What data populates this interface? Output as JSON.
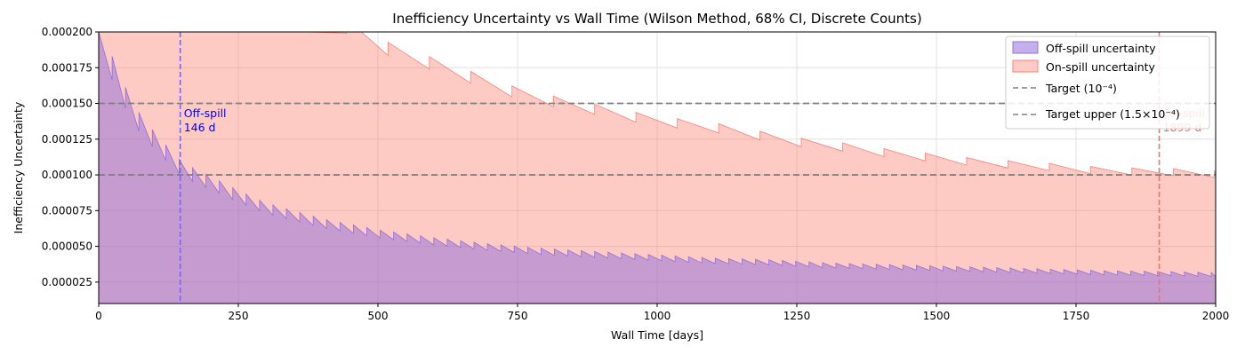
{
  "chart_data": {
    "type": "area",
    "title": "Inefficiency Uncertainty vs Wall Time (Wilson Method, 68% CI, Discrete Counts)",
    "xlabel": "Wall Time [days]",
    "ylabel": "Inefficiency Uncertainty",
    "xlim": [
      0,
      2000
    ],
    "ylim": [
      1e-05,
      0.0002
    ],
    "xticks": [
      "0",
      "250",
      "500",
      "750",
      "1000",
      "1250",
      "1500",
      "1750",
      "2000"
    ],
    "yticks": [
      "0.000025",
      "0.000050",
      "0.000075",
      "0.000100",
      "0.000125",
      "0.000150",
      "0.000175",
      "0.000200"
    ],
    "grid": true,
    "legend_position": "top-right",
    "series": [
      {
        "name": "Off-spill uncertainty",
        "color": "#9370DB",
        "x": [
          0,
          10,
          25,
          50,
          73,
          100,
          125,
          146,
          175,
          200,
          250,
          300,
          400,
          500,
          600,
          700,
          800,
          900,
          1000,
          1100,
          1200,
          1300,
          1400,
          1500,
          1600,
          1700,
          1800,
          1900,
          2000
        ],
        "values": [
          0.0002,
          0.000185,
          0.000165,
          0.000145,
          0.00013,
          0.000118,
          0.000108,
          0.0001,
          9.4e-05,
          9e-05,
          8.1e-05,
          7.3e-05,
          6.3e-05,
          5.6e-05,
          5.1e-05,
          4.7e-05,
          4.4e-05,
          4.2e-05,
          4e-05,
          3.8e-05,
          3.7e-05,
          3.5e-05,
          3.4e-05,
          3.3e-05,
          3.2e-05,
          3.1e-05,
          3e-05,
          2.95e-05,
          2.88e-05
        ]
      },
      {
        "name": "On-spill uncertainty",
        "color": "#FA8072",
        "x": [
          0,
          100,
          200,
          300,
          400,
          440,
          500,
          515,
          585,
          660,
          735,
          810,
          880,
          960,
          1030,
          1100,
          1175,
          1250,
          1325,
          1400,
          1475,
          1550,
          1620,
          1700,
          1770,
          1840,
          1900,
          2000
        ],
        "values": [
          0.0002,
          0.0002,
          0.0002,
          0.0002,
          0.0002,
          0.0002,
          0.000188,
          0.000184,
          0.000175,
          0.000165,
          0.000155,
          0.000148,
          0.000143,
          0.000137,
          0.000133,
          0.00013,
          0.000125,
          0.00012,
          0.000117,
          0.000113,
          0.00011,
          0.000107,
          0.000105,
          0.000103,
          0.000101,
          0.0001,
          9.98e-05,
          9.82e-05
        ]
      }
    ],
    "reference_lines": [
      {
        "name": "Target (10⁻⁴)",
        "y": 0.0001,
        "style": "dashed",
        "color": "#808080"
      },
      {
        "name": "Target upper (1.5×10⁻⁴)",
        "y": 0.00015,
        "style": "dashed",
        "color": "#808080"
      }
    ],
    "vertical_markers": [
      {
        "x": 146,
        "label1": "Off-spill",
        "label2": "146 d",
        "color": "#7B68EE",
        "text_color": "#0000FF"
      },
      {
        "x": 1899,
        "label1": "On-spill",
        "label2": "1899 d",
        "color": "#E9756A",
        "text_color": "#FF6347"
      }
    ]
  }
}
